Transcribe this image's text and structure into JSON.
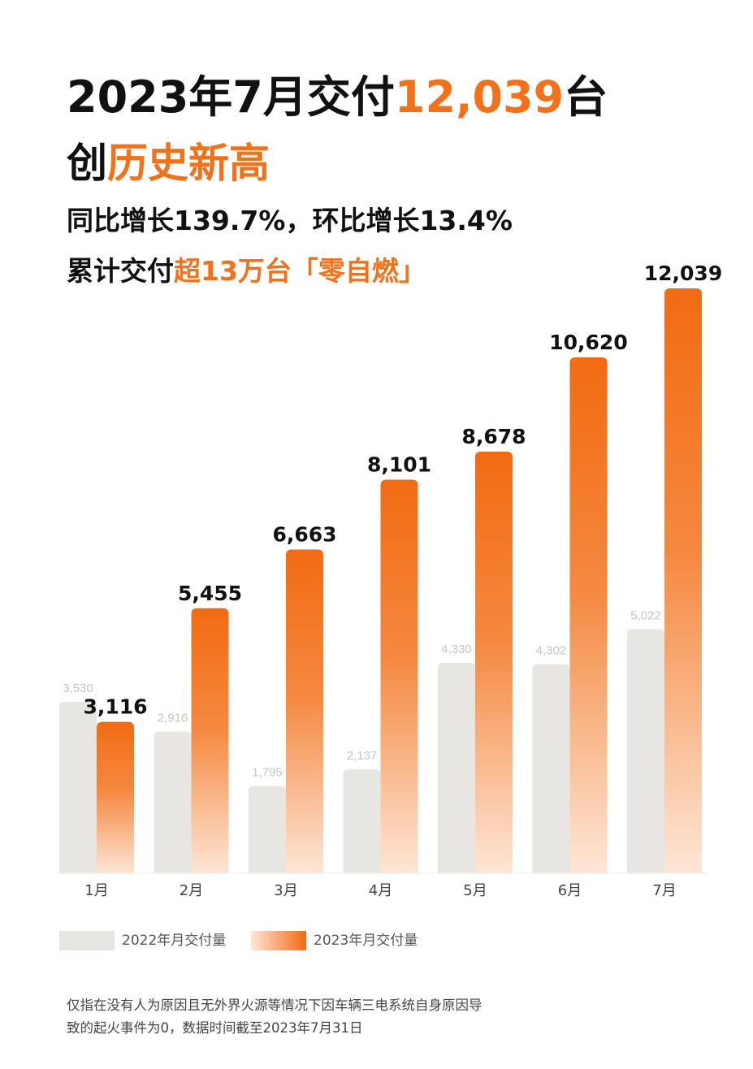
{
  "header": {
    "line1_prefix": "2023年7月交付",
    "line1_highlight": "12,039",
    "line1_suffix": "台",
    "line2_prefix": "创",
    "line2_highlight": "历史新高",
    "line3": "同比增长139.7%，环比增长13.4%",
    "line4_prefix": "累计交付",
    "line4_highlight": "超13万台「零自燃」"
  },
  "colors": {
    "accent": "#F2711A",
    "bar_2022": "#E8E6E3",
    "bar_2023_top": "#F26B12",
    "bar_2023_bottom": "#FDE6D6"
  },
  "chart_data": {
    "type": "bar",
    "categories": [
      "1月",
      "2月",
      "3月",
      "4月",
      "5月",
      "6月",
      "7月"
    ],
    "series": [
      {
        "name": "2022年月交付量",
        "values": [
          3530,
          2916,
          1795,
          2137,
          4330,
          4302,
          5022
        ]
      },
      {
        "name": "2023年月交付量",
        "values": [
          3116,
          5455,
          6663,
          8101,
          8678,
          10620,
          12039
        ]
      }
    ],
    "ylim": [
      0,
      12039
    ],
    "grid": false,
    "legend": "bottom-left",
    "data_labels_2022": [
      "3,530",
      "2,916",
      "1,795",
      "2,137",
      "4,330",
      "4,302",
      "5,022"
    ],
    "data_labels_2023": [
      "3,116",
      "5,455",
      "6,663",
      "8,101",
      "8,678",
      "10,620",
      "12,039"
    ]
  },
  "legend": {
    "label_2022": "2022年月交付量",
    "label_2023": "2023年月交付量"
  },
  "footnote": "仅指在没有人为原因且无外界火源等情况下因车辆三电系统自身原因导致的起火事件为0，数据时间截至2023年7月31日"
}
